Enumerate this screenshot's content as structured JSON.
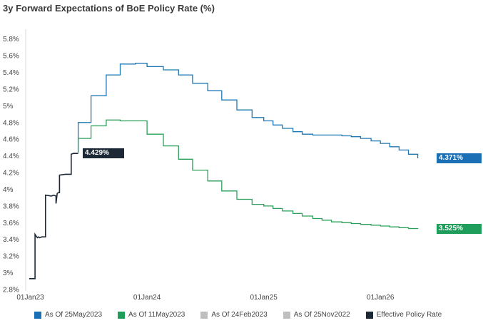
{
  "chart_data": {
    "type": "line",
    "title": "3y Forward Expectations of BoE Policy Rate (%)",
    "xlabel": "",
    "ylabel": "",
    "x_ticks": [
      {
        "label": "01Jan23",
        "x": 2023.0
      },
      {
        "label": "01Jan24",
        "x": 2024.0
      },
      {
        "label": "01Jan25",
        "x": 2025.0
      },
      {
        "label": "01Jan26",
        "x": 2026.0
      }
    ],
    "xlim": [
      2022.96,
      2026.5
    ],
    "ylim": [
      2.8,
      5.9
    ],
    "y_ticks": [
      "5.8%",
      "5.6%",
      "5.4%",
      "5.2%",
      "5%",
      "4.8%",
      "4.6%",
      "4.4%",
      "4.2%",
      "4%",
      "3.8%",
      "3.6%",
      "3.4%",
      "3.2%",
      "3%",
      "2.8%"
    ],
    "y_tick_values": [
      5.8,
      5.6,
      5.4,
      5.2,
      5.0,
      4.8,
      4.6,
      4.4,
      4.2,
      4.0,
      3.8,
      3.6,
      3.4,
      3.2,
      3.0,
      2.8
    ],
    "series": [
      {
        "name": "As Of 25May2023",
        "color": "#1f77b4",
        "legend_color": "#1a6fb5",
        "end_label": "4.371%",
        "points": [
          [
            2023.41,
            4.44
          ],
          [
            2023.41,
            4.8
          ],
          [
            2023.52,
            4.8
          ],
          [
            2023.52,
            5.12
          ],
          [
            2023.65,
            5.12
          ],
          [
            2023.65,
            5.37
          ],
          [
            2023.77,
            5.37
          ],
          [
            2023.77,
            5.5
          ],
          [
            2023.9,
            5.5
          ],
          [
            2023.9,
            5.51
          ],
          [
            2024.0,
            5.51
          ],
          [
            2024.0,
            5.47
          ],
          [
            2024.14,
            5.47
          ],
          [
            2024.14,
            5.43
          ],
          [
            2024.27,
            5.43
          ],
          [
            2024.27,
            5.37
          ],
          [
            2024.39,
            5.37
          ],
          [
            2024.39,
            5.27
          ],
          [
            2024.52,
            5.27
          ],
          [
            2024.52,
            5.18
          ],
          [
            2024.64,
            5.18
          ],
          [
            2024.64,
            5.07
          ],
          [
            2024.77,
            5.07
          ],
          [
            2024.77,
            4.95
          ],
          [
            2024.9,
            4.95
          ],
          [
            2024.9,
            4.86
          ],
          [
            2025.0,
            4.86
          ],
          [
            2025.0,
            4.82
          ],
          [
            2025.08,
            4.82
          ],
          [
            2025.08,
            4.77
          ],
          [
            2025.16,
            4.77
          ],
          [
            2025.16,
            4.73
          ],
          [
            2025.25,
            4.73
          ],
          [
            2025.25,
            4.69
          ],
          [
            2025.33,
            4.69
          ],
          [
            2025.33,
            4.66
          ],
          [
            2025.42,
            4.66
          ],
          [
            2025.42,
            4.65
          ],
          [
            2025.5,
            4.65
          ],
          [
            2025.58,
            4.65
          ],
          [
            2025.67,
            4.65
          ],
          [
            2025.67,
            4.64
          ],
          [
            2025.75,
            4.64
          ],
          [
            2025.75,
            4.63
          ],
          [
            2025.83,
            4.63
          ],
          [
            2025.83,
            4.61
          ],
          [
            2025.92,
            4.61
          ],
          [
            2025.92,
            4.58
          ],
          [
            2026.0,
            4.58
          ],
          [
            2026.0,
            4.55
          ],
          [
            2026.08,
            4.55
          ],
          [
            2026.08,
            4.51
          ],
          [
            2026.16,
            4.51
          ],
          [
            2026.16,
            4.47
          ],
          [
            2026.24,
            4.47
          ],
          [
            2026.24,
            4.42
          ],
          [
            2026.32,
            4.42
          ],
          [
            2026.32,
            4.371
          ]
        ]
      },
      {
        "name": "As Of 11May2023",
        "color": "#2ca05a",
        "legend_color": "#1e9e5a",
        "end_label": "3.525%",
        "points": [
          [
            2023.41,
            4.44
          ],
          [
            2023.41,
            4.61
          ],
          [
            2023.52,
            4.61
          ],
          [
            2023.52,
            4.76
          ],
          [
            2023.65,
            4.76
          ],
          [
            2023.65,
            4.83
          ],
          [
            2023.77,
            4.83
          ],
          [
            2023.77,
            4.82
          ],
          [
            2024.0,
            4.82
          ],
          [
            2024.0,
            4.66
          ],
          [
            2024.14,
            4.66
          ],
          [
            2024.14,
            4.52
          ],
          [
            2024.27,
            4.52
          ],
          [
            2024.27,
            4.36
          ],
          [
            2024.39,
            4.36
          ],
          [
            2024.39,
            4.23
          ],
          [
            2024.52,
            4.23
          ],
          [
            2024.52,
            4.1
          ],
          [
            2024.64,
            4.1
          ],
          [
            2024.64,
            3.98
          ],
          [
            2024.77,
            3.98
          ],
          [
            2024.77,
            3.88
          ],
          [
            2024.9,
            3.88
          ],
          [
            2024.9,
            3.82
          ],
          [
            2025.0,
            3.82
          ],
          [
            2025.0,
            3.8
          ],
          [
            2025.08,
            3.8
          ],
          [
            2025.08,
            3.77
          ],
          [
            2025.16,
            3.77
          ],
          [
            2025.16,
            3.74
          ],
          [
            2025.25,
            3.74
          ],
          [
            2025.25,
            3.71
          ],
          [
            2025.33,
            3.71
          ],
          [
            2025.33,
            3.68
          ],
          [
            2025.42,
            3.68
          ],
          [
            2025.42,
            3.65
          ],
          [
            2025.5,
            3.65
          ],
          [
            2025.5,
            3.63
          ],
          [
            2025.58,
            3.63
          ],
          [
            2025.58,
            3.61
          ],
          [
            2025.67,
            3.61
          ],
          [
            2025.67,
            3.6
          ],
          [
            2025.75,
            3.6
          ],
          [
            2025.75,
            3.59
          ],
          [
            2025.83,
            3.59
          ],
          [
            2025.83,
            3.58
          ],
          [
            2025.92,
            3.58
          ],
          [
            2025.92,
            3.57
          ],
          [
            2026.0,
            3.57
          ],
          [
            2026.0,
            3.56
          ],
          [
            2026.08,
            3.56
          ],
          [
            2026.08,
            3.55
          ],
          [
            2026.16,
            3.55
          ],
          [
            2026.16,
            3.54
          ],
          [
            2026.24,
            3.54
          ],
          [
            2026.24,
            3.53
          ],
          [
            2026.32,
            3.53
          ],
          [
            2026.32,
            3.525
          ]
        ]
      },
      {
        "name": "Effective Policy Rate",
        "color": "#1d2836",
        "legend_color": "#1d2836",
        "end_label": "4.429%",
        "points": [
          [
            2022.99,
            2.93
          ],
          [
            2023.04,
            2.93
          ],
          [
            2023.04,
            3.46
          ],
          [
            2023.05,
            3.44
          ],
          [
            2023.06,
            3.42
          ],
          [
            2023.07,
            3.43
          ],
          [
            2023.08,
            3.42
          ],
          [
            2023.1,
            3.43
          ],
          [
            2023.13,
            3.43
          ],
          [
            2023.13,
            3.93
          ],
          [
            2023.18,
            3.92
          ],
          [
            2023.2,
            3.93
          ],
          [
            2023.22,
            3.92
          ],
          [
            2023.22,
            3.83
          ],
          [
            2023.23,
            3.95
          ],
          [
            2023.24,
            3.96
          ],
          [
            2023.25,
            3.96
          ],
          [
            2023.25,
            4.17
          ],
          [
            2023.3,
            4.18
          ],
          [
            2023.35,
            4.18
          ],
          [
            2023.35,
            4.42
          ],
          [
            2023.37,
            4.43
          ],
          [
            2023.41,
            4.429
          ]
        ]
      }
    ],
    "legend": [
      {
        "label": "As Of 25May2023",
        "color": "#1a6fb5"
      },
      {
        "label": "As Of 11May2023",
        "color": "#1e9e5a"
      },
      {
        "label": "As Of 24Feb2023",
        "color": "#bfbfbf"
      },
      {
        "label": "As Of 25Nov2022",
        "color": "#bfbfbf"
      },
      {
        "label": "Effective Policy Rate",
        "color": "#1d2836"
      }
    ]
  }
}
